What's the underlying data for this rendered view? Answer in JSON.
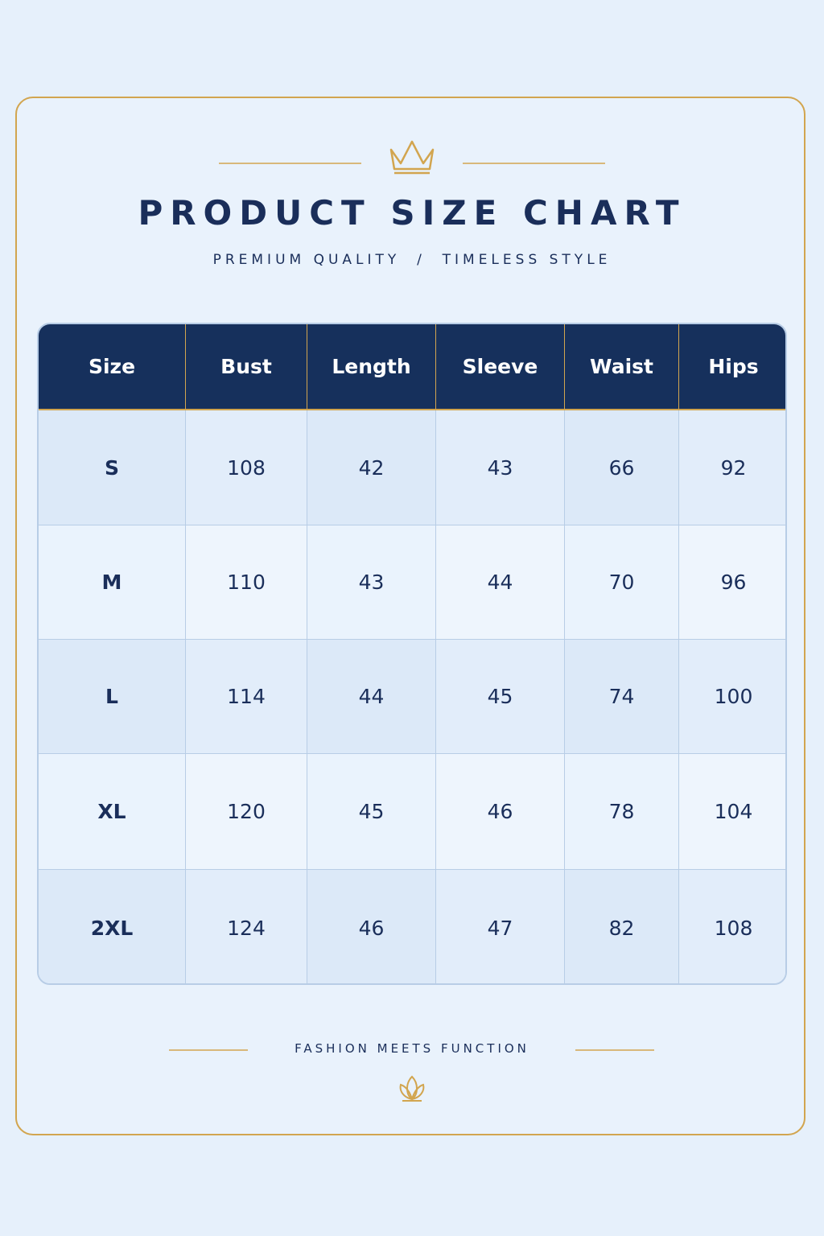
{
  "header": {
    "title": "PRODUCT SIZE CHART",
    "subtitle": "PREMIUM QUALITY  /  TIMELESS STYLE"
  },
  "table": {
    "columns": [
      "Size",
      "Bust",
      "Length",
      "Sleeve",
      "Waist",
      "Hips"
    ],
    "rows": [
      [
        "S",
        108,
        42,
        43,
        66,
        92
      ],
      [
        "M",
        110,
        43,
        44,
        70,
        96
      ],
      [
        "L",
        114,
        44,
        45,
        74,
        100
      ],
      [
        "XL",
        120,
        45,
        46,
        78,
        104
      ],
      [
        "2XL",
        124,
        46,
        47,
        82,
        108
      ]
    ]
  },
  "footer": {
    "tagline": "FASHION MEETS FUNCTION"
  }
}
